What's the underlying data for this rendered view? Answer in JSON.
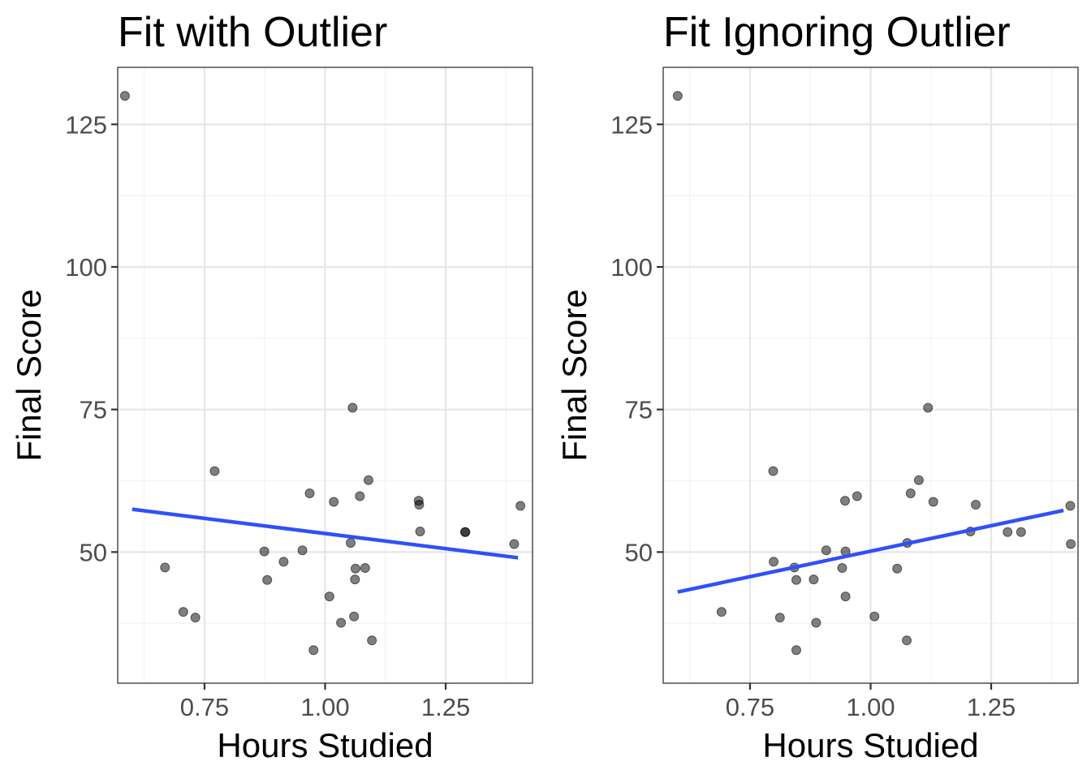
{
  "chart_data": [
    {
      "type": "scatter",
      "title": "Fit with Outlier",
      "xlabel": "Hours Studied",
      "ylabel": "Final Score",
      "xlim": [
        0.57,
        1.43
      ],
      "ylim": [
        27,
        135
      ],
      "x_ticks": [
        0.75,
        1.0,
        1.25
      ],
      "x_tick_labels": [
        "0.75",
        "1.00",
        "1.25"
      ],
      "y_ticks": [
        50,
        75,
        100,
        125
      ],
      "y_tick_labels": [
        "50",
        "75",
        "100",
        "125"
      ],
      "grid": true,
      "points": [
        {
          "x": 0.585,
          "y": 130.0
        },
        {
          "x": 0.668,
          "y": 47.3
        },
        {
          "x": 0.706,
          "y": 39.5
        },
        {
          "x": 0.731,
          "y": 38.5
        },
        {
          "x": 0.771,
          "y": 64.2
        },
        {
          "x": 0.874,
          "y": 50.1
        },
        {
          "x": 0.88,
          "y": 45.1
        },
        {
          "x": 0.914,
          "y": 48.3
        },
        {
          "x": 0.953,
          "y": 50.3
        },
        {
          "x": 0.968,
          "y": 60.3
        },
        {
          "x": 0.976,
          "y": 32.8
        },
        {
          "x": 1.009,
          "y": 42.2
        },
        {
          "x": 1.018,
          "y": 58.8
        },
        {
          "x": 1.033,
          "y": 37.6
        },
        {
          "x": 1.053,
          "y": 51.6
        },
        {
          "x": 1.057,
          "y": 75.3
        },
        {
          "x": 1.06,
          "y": 38.7
        },
        {
          "x": 1.062,
          "y": 45.2
        },
        {
          "x": 1.063,
          "y": 47.1
        },
        {
          "x": 1.072,
          "y": 59.8
        },
        {
          "x": 1.083,
          "y": 47.2
        },
        {
          "x": 1.09,
          "y": 62.6
        },
        {
          "x": 1.097,
          "y": 34.5
        },
        {
          "x": 1.194,
          "y": 59.0
        },
        {
          "x": 1.195,
          "y": 58.3
        },
        {
          "x": 1.197,
          "y": 53.6
        },
        {
          "x": 1.29,
          "y": 53.5
        },
        {
          "x": 1.291,
          "y": 53.5
        },
        {
          "x": 1.392,
          "y": 51.4
        },
        {
          "x": 1.405,
          "y": 58.1
        }
      ],
      "fit_line": {
        "x": [
          0.6,
          1.4
        ],
        "y": [
          57.5,
          49.0
        ],
        "color": "#3050f8"
      }
    },
    {
      "type": "scatter",
      "title": "Fit Ignoring Outlier",
      "xlabel": "Hours Studied",
      "ylabel": "Final Score",
      "xlim": [
        0.57,
        1.43
      ],
      "ylim": [
        27,
        135
      ],
      "x_ticks": [
        0.75,
        1.0,
        1.25
      ],
      "x_tick_labels": [
        "0.75",
        "1.00",
        "1.25"
      ],
      "y_ticks": [
        50,
        75,
        100,
        125
      ],
      "y_tick_labels": [
        "50",
        "75",
        "100",
        "125"
      ],
      "grid": true,
      "points": [
        {
          "x": 0.6,
          "y": 130.0
        },
        {
          "x": 0.691,
          "y": 39.5
        },
        {
          "x": 0.798,
          "y": 64.2
        },
        {
          "x": 0.799,
          "y": 48.3
        },
        {
          "x": 0.812,
          "y": 38.5
        },
        {
          "x": 0.842,
          "y": 47.3
        },
        {
          "x": 0.846,
          "y": 45.1
        },
        {
          "x": 0.846,
          "y": 32.8
        },
        {
          "x": 0.882,
          "y": 45.2
        },
        {
          "x": 0.887,
          "y": 37.6
        },
        {
          "x": 0.908,
          "y": 50.3
        },
        {
          "x": 0.941,
          "y": 47.2
        },
        {
          "x": 0.947,
          "y": 59.0
        },
        {
          "x": 0.948,
          "y": 50.1
        },
        {
          "x": 0.948,
          "y": 42.2
        },
        {
          "x": 0.972,
          "y": 59.8
        },
        {
          "x": 1.008,
          "y": 38.7
        },
        {
          "x": 1.055,
          "y": 47.1
        },
        {
          "x": 1.075,
          "y": 34.5
        },
        {
          "x": 1.076,
          "y": 51.6
        },
        {
          "x": 1.083,
          "y": 60.3
        },
        {
          "x": 1.1,
          "y": 62.6
        },
        {
          "x": 1.119,
          "y": 75.3
        },
        {
          "x": 1.13,
          "y": 58.8
        },
        {
          "x": 1.207,
          "y": 53.6
        },
        {
          "x": 1.218,
          "y": 58.3
        },
        {
          "x": 1.284,
          "y": 53.5
        },
        {
          "x": 1.312,
          "y": 53.5
        },
        {
          "x": 1.414,
          "y": 58.1
        },
        {
          "x": 1.415,
          "y": 51.4
        }
      ],
      "fit_line": {
        "x": [
          0.6,
          1.4
        ],
        "y": [
          43.0,
          57.3
        ],
        "color": "#3050f8"
      }
    }
  ]
}
